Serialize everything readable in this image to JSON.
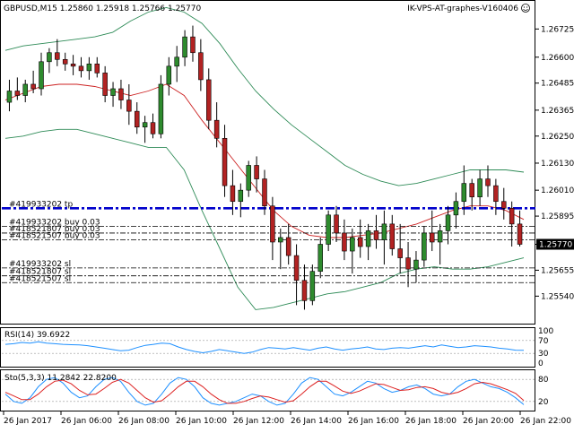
{
  "header": {
    "symbol_line": "GBPUSD,M15  1.25860 1.25918 1.25766 1.25770",
    "expert_name": "IK-VPS-AT-graphes-V160406",
    "smile_icon": "smile-icon"
  },
  "colors": {
    "bull": "#2e8b2e",
    "bear": "#b22222",
    "bb_band": "#2e8b57",
    "bb_mid": "#cc2222",
    "order_line": "#0000cc",
    "rsi_line": "#1e90ff",
    "sto_main": "#1e90ff",
    "sto_signal": "#dd2222",
    "price_tag_bg": "#000000"
  },
  "chart_data": [
    {
      "type": "candlestick",
      "title": "GBPUSD,M15  1.25860 1.25918 1.25766 1.25770",
      "ylim": [
        1.2543,
        1.2679
      ],
      "y_ticks": [
        "1.26725",
        "1.26600",
        "1.26485",
        "1.26365",
        "1.26250",
        "1.26130",
        "1.26010",
        "1.25895",
        "1.25770",
        "1.25655",
        "1.25540"
      ],
      "current_price": "1.25770",
      "candles": [
        [
          1.264,
          1.265,
          1.2636,
          1.2645
        ],
        [
          1.2645,
          1.2651,
          1.2641,
          1.2643
        ],
        [
          1.2643,
          1.265,
          1.264,
          1.2648
        ],
        [
          1.2648,
          1.2654,
          1.2644,
          1.2646
        ],
        [
          1.2646,
          1.2662,
          1.2643,
          1.2658
        ],
        [
          1.2658,
          1.2664,
          1.2653,
          1.2662
        ],
        [
          1.2662,
          1.2668,
          1.2656,
          1.2659
        ],
        [
          1.2659,
          1.2662,
          1.2654,
          1.2657
        ],
        [
          1.2657,
          1.2661,
          1.2652,
          1.2656
        ],
        [
          1.2656,
          1.266,
          1.2651,
          1.2654
        ],
        [
          1.2654,
          1.266,
          1.265,
          1.2657
        ],
        [
          1.2657,
          1.266,
          1.2651,
          1.2653
        ],
        [
          1.2653,
          1.2656,
          1.264,
          1.2643
        ],
        [
          1.2643,
          1.2649,
          1.2638,
          1.2646
        ],
        [
          1.2646,
          1.265,
          1.2637,
          1.2641
        ],
        [
          1.2641,
          1.2648,
          1.263,
          1.2636
        ],
        [
          1.2636,
          1.264,
          1.2626,
          1.2629
        ],
        [
          1.2629,
          1.2634,
          1.2622,
          1.2631
        ],
        [
          1.2631,
          1.2635,
          1.2624,
          1.2626
        ],
        [
          1.2626,
          1.2652,
          1.2624,
          1.2648
        ],
        [
          1.2648,
          1.266,
          1.2643,
          1.2656
        ],
        [
          1.2656,
          1.2665,
          1.2649,
          1.266
        ],
        [
          1.266,
          1.2672,
          1.2656,
          1.2669
        ],
        [
          1.2669,
          1.2674,
          1.2658,
          1.2662
        ],
        [
          1.2662,
          1.2668,
          1.2645,
          1.265
        ],
        [
          1.265,
          1.2655,
          1.2628,
          1.2632
        ],
        [
          1.2632,
          1.264,
          1.262,
          1.2624
        ],
        [
          1.2624,
          1.263,
          1.2598,
          1.2603
        ],
        [
          1.2603,
          1.261,
          1.259,
          1.2596
        ],
        [
          1.2596,
          1.2604,
          1.2589,
          1.2601
        ],
        [
          1.2601,
          1.2614,
          1.2598,
          1.2612
        ],
        [
          1.2612,
          1.2616,
          1.26,
          1.2606
        ],
        [
          1.2606,
          1.261,
          1.259,
          1.2594
        ],
        [
          1.2594,
          1.2598,
          1.257,
          1.2578
        ],
        [
          1.2578,
          1.2584,
          1.2566,
          1.258
        ],
        [
          1.258,
          1.2586,
          1.2568,
          1.2572
        ],
        [
          1.2572,
          1.2577,
          1.255,
          1.2561
        ],
        [
          1.2561,
          1.2568,
          1.2548,
          1.2552
        ],
        [
          1.2552,
          1.2568,
          1.255,
          1.2565
        ],
        [
          1.2565,
          1.258,
          1.2562,
          1.2577
        ],
        [
          1.2577,
          1.2592,
          1.2574,
          1.259
        ],
        [
          1.259,
          1.2594,
          1.2578,
          1.2582
        ],
        [
          1.2582,
          1.2588,
          1.257,
          1.2574
        ],
        [
          1.2574,
          1.2584,
          1.2564,
          1.258
        ],
        [
          1.258,
          1.2588,
          1.2571,
          1.2576
        ],
        [
          1.2576,
          1.2586,
          1.257,
          1.2583
        ],
        [
          1.2583,
          1.259,
          1.2575,
          1.2579
        ],
        [
          1.2579,
          1.2592,
          1.2568,
          1.2586
        ],
        [
          1.2586,
          1.259,
          1.2572,
          1.2575
        ],
        [
          1.2575,
          1.2586,
          1.2564,
          1.2571
        ],
        [
          1.2571,
          1.2578,
          1.2558,
          1.2566
        ],
        [
          1.2566,
          1.2574,
          1.256,
          1.257
        ],
        [
          1.257,
          1.2585,
          1.2567,
          1.2582
        ],
        [
          1.2582,
          1.2592,
          1.2574,
          1.2578
        ],
        [
          1.2578,
          1.2586,
          1.2568,
          1.2583
        ],
        [
          1.2583,
          1.2594,
          1.2577,
          1.259
        ],
        [
          1.259,
          1.26,
          1.2584,
          1.2596
        ],
        [
          1.2596,
          1.2612,
          1.259,
          1.2604
        ],
        [
          1.2604,
          1.2606,
          1.2592,
          1.2598
        ],
        [
          1.2598,
          1.261,
          1.2594,
          1.2606
        ],
        [
          1.2606,
          1.2612,
          1.2598,
          1.2603
        ],
        [
          1.2603,
          1.2606,
          1.259,
          1.2596
        ],
        [
          1.2596,
          1.2602,
          1.2588,
          1.2593
        ],
        [
          1.2593,
          1.2596,
          1.2576,
          1.2586
        ],
        [
          1.2586,
          1.2592,
          1.2576,
          1.2577
        ]
      ],
      "bollinger": {
        "upper": [
          1.2663,
          1.2665,
          1.2666,
          1.2667,
          1.2668,
          1.2669,
          1.2671,
          1.2676,
          1.268,
          1.2682,
          1.268,
          1.2675,
          1.2666,
          1.2655,
          1.2645,
          1.2637,
          1.263,
          1.2624,
          1.2618,
          1.2612,
          1.2608,
          1.2605,
          1.2603,
          1.2604,
          1.2606,
          1.2608,
          1.261,
          1.261,
          1.261,
          1.2609
        ],
        "middle": [
          1.2641,
          1.2644,
          1.2647,
          1.2648,
          1.2648,
          1.2647,
          1.2645,
          1.2643,
          1.2645,
          1.2648,
          1.2643,
          1.2632,
          1.2622,
          1.2612,
          1.2602,
          1.2592,
          1.2585,
          1.2581,
          1.258,
          1.258,
          1.2581,
          1.2582,
          1.2584,
          1.2586,
          1.2589,
          1.2592,
          1.2594,
          1.2594,
          1.2592,
          1.2588
        ],
        "lower": [
          1.2624,
          1.2625,
          1.2627,
          1.2628,
          1.2628,
          1.2626,
          1.2624,
          1.2622,
          1.262,
          1.262,
          1.261,
          1.2592,
          1.2575,
          1.2558,
          1.2548,
          1.2549,
          1.2551,
          1.2553,
          1.2555,
          1.2556,
          1.2558,
          1.256,
          1.2564,
          1.2566,
          1.2567,
          1.2566,
          1.2566,
          1.2567,
          1.2569,
          1.2571
        ]
      },
      "order_lines": [
        {
          "price": 1.2593,
          "style": "dashdot-thick",
          "label": "#419933202 tp"
        },
        {
          "price": 1.2585,
          "style": "dashdot",
          "label": "#419933202 buy 0.03"
        },
        {
          "price": 1.2582,
          "style": "dashdot",
          "label": "#418521807 buy 0.03"
        },
        {
          "price": 1.2579,
          "style": "dashdot",
          "label": "#418521507 buy 0.03"
        },
        {
          "price": 1.25665,
          "style": "dashdot",
          "label": "#419933202 sl"
        },
        {
          "price": 1.2563,
          "style": "dashdot",
          "label": "#418521807 sl"
        },
        {
          "price": 1.256,
          "style": "dashdot",
          "label": "#418521507 sl"
        }
      ]
    },
    {
      "type": "line",
      "title": "RSI(14) 39.6922",
      "ylim": [
        0,
        100
      ],
      "y_ticks": [
        "100",
        "70",
        "30",
        "0"
      ],
      "values": [
        58,
        60,
        64,
        62,
        66,
        62,
        60,
        58,
        57,
        56,
        54,
        50,
        46,
        42,
        38,
        40,
        48,
        55,
        58,
        62,
        60,
        50,
        42,
        36,
        32,
        36,
        42,
        38,
        34,
        30,
        34,
        42,
        48,
        46,
        44,
        48,
        44,
        40,
        46,
        50,
        44,
        40,
        44,
        46,
        50,
        44,
        42,
        46,
        48,
        46,
        50,
        54,
        50,
        56,
        52,
        48,
        50,
        54,
        52,
        50,
        46,
        44,
        40,
        39.7
      ]
    },
    {
      "type": "line",
      "title": "Sto(5,3,3) 11.2842 22.8200",
      "ylim": [
        0,
        100
      ],
      "y_ticks": [
        "80",
        "20"
      ],
      "series": [
        {
          "values": [
            40,
            20,
            15,
            30,
            60,
            80,
            85,
            70,
            45,
            30,
            35,
            60,
            80,
            85,
            75,
            45,
            20,
            10,
            15,
            40,
            70,
            85,
            80,
            60,
            30,
            15,
            10,
            15,
            20,
            30,
            40,
            35,
            20,
            10,
            15,
            40,
            70,
            85,
            80,
            60,
            40,
            35,
            45,
            60,
            75,
            70,
            55,
            45,
            50,
            60,
            65,
            55,
            40,
            35,
            40,
            60,
            75,
            80,
            70,
            60,
            55,
            45,
            30,
            11.3
          ]
        },
        {
          "values": [
            45,
            35,
            25,
            25,
            40,
            60,
            75,
            78,
            68,
            50,
            38,
            40,
            55,
            72,
            80,
            70,
            50,
            30,
            18,
            22,
            40,
            60,
            75,
            75,
            60,
            40,
            25,
            15,
            15,
            20,
            28,
            35,
            32,
            25,
            18,
            22,
            40,
            60,
            75,
            75,
            62,
            48,
            42,
            48,
            58,
            68,
            66,
            58,
            50,
            52,
            58,
            60,
            55,
            45,
            40,
            45,
            55,
            68,
            72,
            68,
            60,
            52,
            42,
            22.8
          ]
        }
      ]
    }
  ],
  "time_axis": [
    "26 Jan 2017",
    "26 Jan 06:00",
    "26 Jan 08:00",
    "26 Jan 10:00",
    "26 Jan 12:00",
    "26 Jan 14:00",
    "26 Jan 16:00",
    "26 Jan 18:00",
    "26 Jan 20:00",
    "26 Jan 22:00"
  ]
}
